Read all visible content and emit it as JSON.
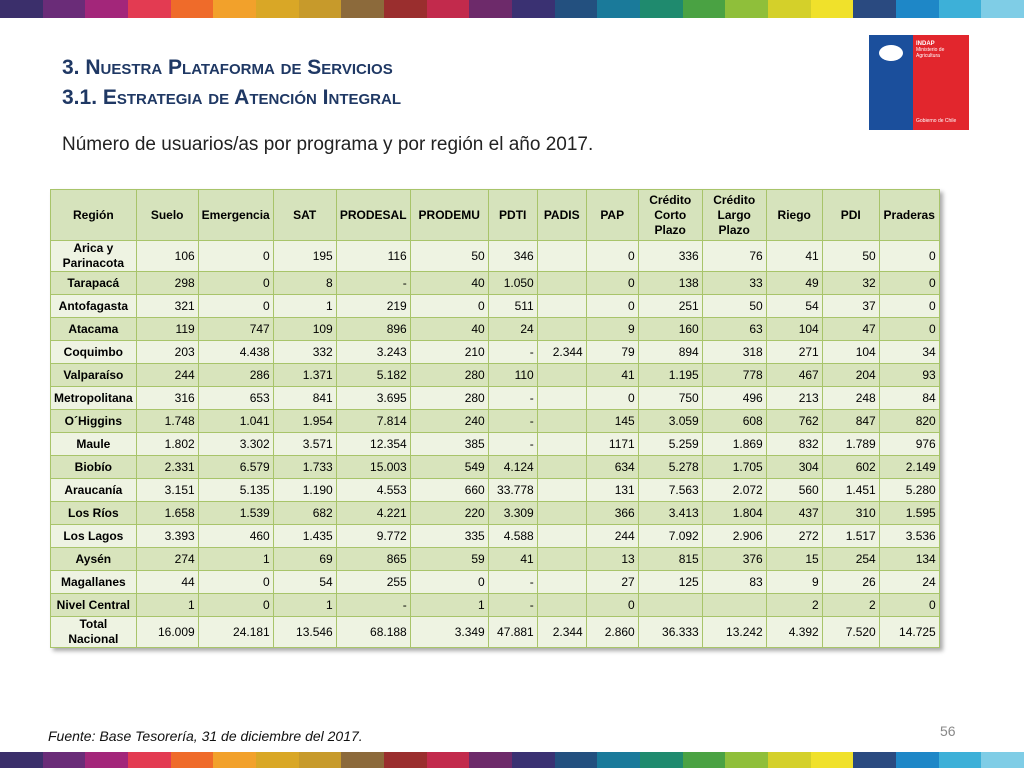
{
  "header": {
    "title_line1": "3. Nuestra Plataforma de Servicios",
    "title_line2": "3.1. Estrategia de Atención Integral",
    "subtitle": "Número de usuarios/as por programa y por región el año 2017."
  },
  "logo": {
    "name": "INDAP",
    "ministry": "Ministerio de Agricultura",
    "government": "Gobierno de Chile"
  },
  "table": {
    "columns": [
      "Región",
      "Suelo",
      "Emergencia",
      "SAT",
      "PRODESAL",
      "PRODEMU",
      "PDTI",
      "PADIS",
      "PAP",
      "Crédito Corto Plazo",
      "Crédito Largo Plazo",
      "Riego",
      "PDI",
      "Praderas"
    ],
    "rows": [
      [
        "Arica y Parinacota",
        "106",
        "0",
        "195",
        "116",
        "50",
        "346",
        null,
        "0",
        "336",
        "76",
        "41",
        "50",
        "0"
      ],
      [
        "Tarapacá",
        "298",
        "0",
        "8",
        "-",
        "40",
        "1.050",
        null,
        "0",
        "138",
        "33",
        "49",
        "32",
        "0"
      ],
      [
        "Antofagasta",
        "321",
        "0",
        "1",
        "219",
        "0",
        "511",
        null,
        "0",
        "251",
        "50",
        "54",
        "37",
        "0"
      ],
      [
        "Atacama",
        "119",
        "747",
        "109",
        "896",
        "40",
        "24",
        null,
        "9",
        "160",
        "63",
        "104",
        "47",
        "0"
      ],
      [
        "Coquimbo",
        "203",
        "4.438",
        "332",
        "3.243",
        "210",
        "-",
        "2.344",
        "79",
        "894",
        "318",
        "271",
        "104",
        "34"
      ],
      [
        "Valparaíso",
        "244",
        "286",
        "1.371",
        "5.182",
        "280",
        "110",
        null,
        "41",
        "1.195",
        "778",
        "467",
        "204",
        "93"
      ],
      [
        "Metropolitana",
        "316",
        "653",
        "841",
        "3.695",
        "280",
        "-",
        null,
        "0",
        "750",
        "496",
        "213",
        "248",
        "84"
      ],
      [
        "O´Higgins",
        "1.748",
        "1.041",
        "1.954",
        "7.814",
        "240",
        "-",
        null,
        "145",
        "3.059",
        "608",
        "762",
        "847",
        "820"
      ],
      [
        "Maule",
        "1.802",
        "3.302",
        "3.571",
        "12.354",
        "385",
        "-",
        null,
        "1171",
        "5.259",
        "1.869",
        "832",
        "1.789",
        "976"
      ],
      [
        "Biobío",
        "2.331",
        "6.579",
        "1.733",
        "15.003",
        "549",
        "4.124",
        null,
        "634",
        "5.278",
        "1.705",
        "304",
        "602",
        "2.149"
      ],
      [
        "Araucanía",
        "3.151",
        "5.135",
        "1.190",
        "4.553",
        "660",
        "33.778",
        null,
        "131",
        "7.563",
        "2.072",
        "560",
        "1.451",
        "5.280"
      ],
      [
        "Los Ríos",
        "1.658",
        "1.539",
        "682",
        "4.221",
        "220",
        "3.309",
        null,
        "366",
        "3.413",
        "1.804",
        "437",
        "310",
        "1.595"
      ],
      [
        "Los Lagos",
        "3.393",
        "460",
        "1.435",
        "9.772",
        "335",
        "4.588",
        null,
        "244",
        "7.092",
        "2.906",
        "272",
        "1.517",
        "3.536"
      ],
      [
        "Aysén",
        "274",
        "1",
        "69",
        "865",
        "59",
        "41",
        null,
        "13",
        "815",
        "376",
        "15",
        "254",
        "134"
      ],
      [
        "Magallanes",
        "44",
        "0",
        "54",
        "255",
        "0",
        "-",
        null,
        "27",
        "125",
        "83",
        "9",
        "26",
        "24"
      ],
      [
        "Nivel Central",
        "1",
        "0",
        "1",
        "-",
        "1",
        "-",
        null,
        "0",
        null,
        null,
        "2",
        "2",
        "0"
      ],
      [
        "Total Nacional",
        "16.009",
        "24.181",
        "13.546",
        "68.188",
        "3.349",
        "47.881",
        "2.344",
        "2.860",
        "36.333",
        "13.242",
        "4.392",
        "7.520",
        "14.725"
      ]
    ]
  },
  "footer": {
    "source": "Fuente: Base Tesorería, 31 de diciembre del 2017.",
    "page": "56"
  }
}
